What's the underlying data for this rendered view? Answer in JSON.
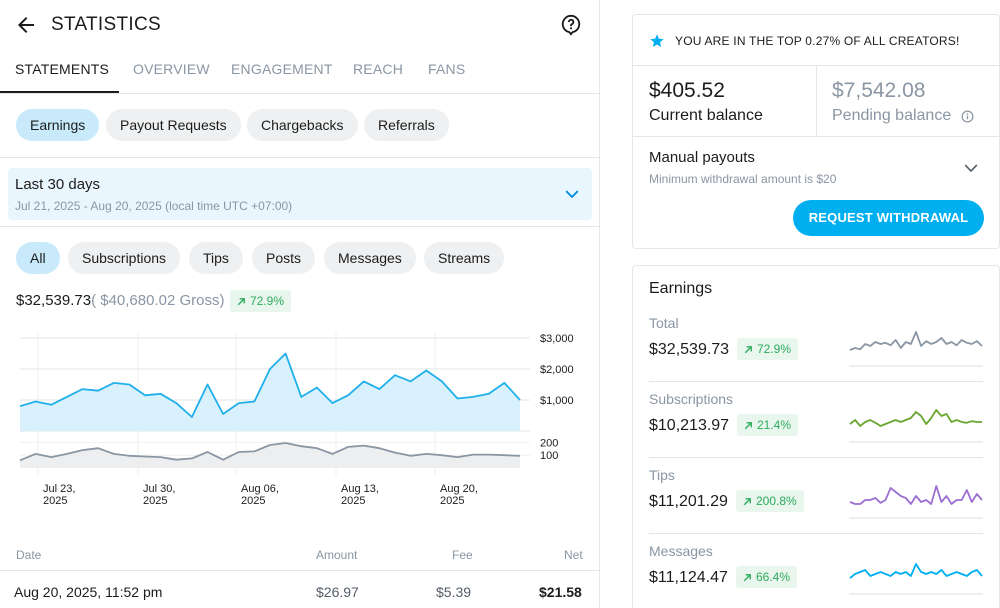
{
  "header": {
    "title": "STATISTICS"
  },
  "tabs": [
    {
      "label": "STATEMENTS"
    },
    {
      "label": "OVERVIEW"
    },
    {
      "label": "ENGAGEMENT"
    },
    {
      "label": "REACH"
    },
    {
      "label": "FANS"
    }
  ],
  "statement_types": [
    "Earnings",
    "Payout Requests",
    "Chargebacks",
    "Referrals"
  ],
  "date_range": {
    "label": "Last 30 days",
    "sub": "Jul 21, 2025 - Aug 20, 2025 (local time UTC +07:00)"
  },
  "filters": [
    "All",
    "Subscriptions",
    "Tips",
    "Posts",
    "Messages",
    "Streams"
  ],
  "summary": {
    "net": "$32,539.73",
    "gross": "( $40,680.02 Gross)",
    "change": "72.9%"
  },
  "chart_data": {
    "type": "area",
    "x_labels": [
      {
        "day": "Jul 23,",
        "year": "2025"
      },
      {
        "day": "Jul 30,",
        "year": "2025"
      },
      {
        "day": "Aug 06,",
        "year": "2025"
      },
      {
        "day": "Aug 13,",
        "year": "2025"
      },
      {
        "day": "Aug 20,",
        "year": "2025"
      }
    ],
    "upper": {
      "yticks": [
        "$3,000",
        "$2,000",
        "$1,000"
      ],
      "ylim": [
        0,
        3000
      ],
      "values": [
        800,
        950,
        850,
        1100,
        1350,
        1300,
        1550,
        1500,
        1150,
        1200,
        900,
        450,
        1500,
        550,
        900,
        950,
        2000,
        2500,
        1100,
        1400,
        900,
        1150,
        1600,
        1350,
        1800,
        1600,
        1950,
        1600,
        1050,
        1100,
        1200,
        1550,
        1000
      ]
    },
    "lower": {
      "yticks": [
        "200",
        "100"
      ],
      "ylim": [
        0,
        250
      ],
      "values": [
        60,
        110,
        85,
        110,
        140,
        155,
        110,
        95,
        90,
        85,
        65,
        75,
        125,
        65,
        125,
        130,
        180,
        195,
        170,
        155,
        110,
        165,
        175,
        155,
        120,
        95,
        110,
        100,
        85,
        105,
        105,
        100,
        95
      ]
    }
  },
  "table": {
    "headers": {
      "date": "Date",
      "amount": "Amount",
      "fee": "Fee",
      "net": "Net"
    },
    "rows": [
      {
        "date": "Aug 20, 2025, 11:52 pm",
        "amount": "$26.97",
        "fee": "$5.39",
        "net": "$21.58"
      }
    ]
  },
  "right": {
    "top_creator": "YOU ARE IN THE TOP 0.27% OF ALL CREATORS!",
    "current_balance": {
      "amount": "$405.52",
      "label": "Current balance"
    },
    "pending_balance": {
      "amount": "$7,542.08",
      "label": "Pending balance"
    },
    "manual_payouts": {
      "title": "Manual payouts",
      "sub": "Minimum withdrawal amount is $20"
    },
    "request_button": "REQUEST WITHDRAWAL",
    "earnings": {
      "title": "Earnings",
      "rows": [
        {
          "label": "Total",
          "amount": "$32,539.73",
          "change": "72.9%",
          "color": "#8a96a3",
          "spark": [
            40,
            45,
            42,
            55,
            50,
            60,
            55,
            58,
            52,
            65,
            45,
            60,
            55,
            85,
            50,
            62,
            55,
            60,
            70,
            55,
            60,
            52,
            65,
            58,
            55,
            62,
            50
          ]
        },
        {
          "label": "Subscriptions",
          "amount": "$10,213.97",
          "change": "21.4%",
          "color": "#6aa632",
          "spark": [
            45,
            55,
            40,
            50,
            55,
            48,
            40,
            45,
            50,
            55,
            50,
            55,
            60,
            75,
            65,
            45,
            60,
            80,
            65,
            70,
            50,
            55,
            50,
            48,
            52,
            50,
            50
          ]
        },
        {
          "label": "Tips",
          "amount": "$11,201.29",
          "change": "200.8%",
          "color": "#9b6fd1",
          "spark": [
            40,
            35,
            35,
            45,
            45,
            50,
            38,
            45,
            75,
            65,
            55,
            50,
            35,
            55,
            40,
            45,
            35,
            80,
            40,
            55,
            35,
            45,
            45,
            70,
            40,
            60,
            45
          ]
        },
        {
          "label": "Messages",
          "amount": "$11,124.47",
          "change": "66.4%",
          "color": "#00aff0",
          "spark": [
            40,
            50,
            55,
            60,
            45,
            50,
            55,
            50,
            45,
            55,
            50,
            55,
            45,
            75,
            55,
            50,
            55,
            50,
            60,
            45,
            50,
            55,
            50,
            45,
            55,
            60,
            45
          ]
        }
      ]
    }
  },
  "colors": {
    "accent": "#00aff0",
    "chip": "#eef0f2",
    "chip_active": "#c8eafb",
    "positive": "#2eaa5c"
  }
}
